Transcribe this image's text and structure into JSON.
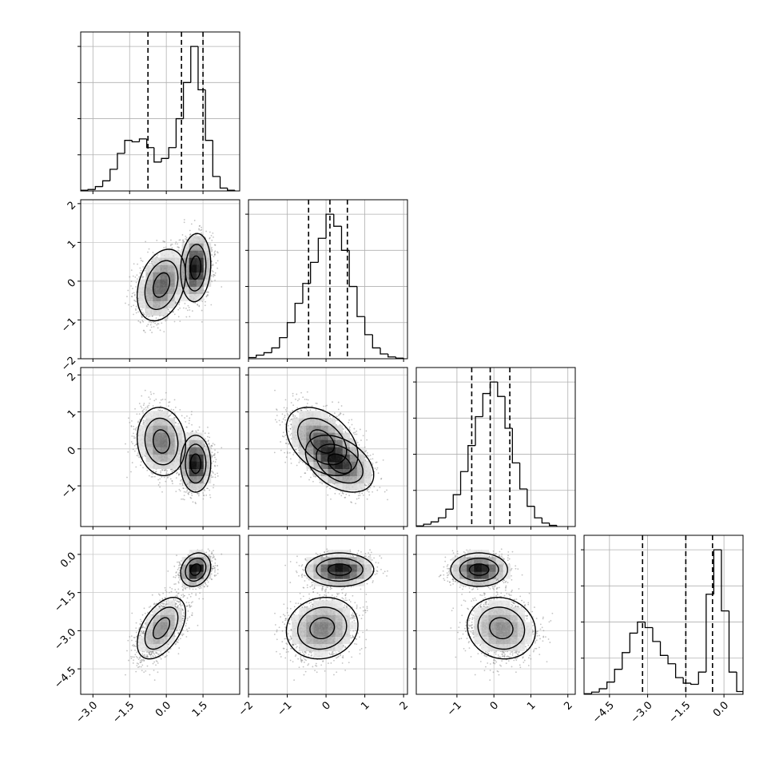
{
  "chart_data": {
    "type": "corner",
    "grid": true,
    "params": [
      {
        "id": "p0",
        "lim": [
          -3.5,
          3.0
        ],
        "ticks": [
          -3.0,
          -1.5,
          0.0,
          1.5
        ],
        "tick_labels": [
          "−3.0",
          "−1.5",
          "0.0",
          "1.5"
        ],
        "quantiles": [
          -0.75,
          0.62,
          1.5
        ]
      },
      {
        "id": "p1",
        "lim": [
          -2.0,
          2.1
        ],
        "ticks": [
          -2,
          -1,
          0,
          1,
          2
        ],
        "tick_labels": [
          "−2",
          "−1",
          "0",
          "1",
          "2"
        ],
        "quantiles": [
          -0.45,
          0.1,
          0.55
        ]
      },
      {
        "id": "p2",
        "lim": [
          -2.1,
          2.2
        ],
        "ticks": [
          -1,
          0,
          1,
          2
        ],
        "tick_labels": [
          "−1",
          "0",
          "1",
          "2"
        ],
        "quantiles": [
          -0.6,
          -0.1,
          0.43
        ]
      },
      {
        "id": "p3",
        "lim": [
          -5.5,
          0.75
        ],
        "ticks": [
          -4.5,
          -3.0,
          -1.5,
          0.0
        ],
        "tick_labels": [
          "−4.5",
          "−3.0",
          "−1.5",
          "0.0"
        ],
        "quantiles": [
          -3.2,
          -1.5,
          -0.45
        ]
      }
    ],
    "marginals": [
      {
        "param": "p0",
        "edges": [
          -3.5,
          -3.2,
          -2.9,
          -2.6,
          -2.3,
          -2.0,
          -1.7,
          -1.4,
          -1.1,
          -0.8,
          -0.5,
          -0.2,
          0.1,
          0.4,
          0.7,
          1.0,
          1.3,
          1.6,
          1.9,
          2.2,
          2.5,
          2.8
        ],
        "counts": [
          1,
          2,
          6,
          14,
          30,
          52,
          70,
          68,
          72,
          60,
          40,
          45,
          60,
          100,
          150,
          200,
          140,
          70,
          20,
          4,
          1
        ]
      },
      {
        "param": "p1",
        "edges": [
          -2.0,
          -1.8,
          -1.6,
          -1.4,
          -1.2,
          -1.0,
          -0.8,
          -0.6,
          -0.4,
          -0.2,
          0.0,
          0.2,
          0.4,
          0.6,
          0.8,
          1.0,
          1.2,
          1.4,
          1.6,
          1.8,
          2.0
        ],
        "counts": [
          2,
          6,
          10,
          18,
          35,
          60,
          92,
          125,
          160,
          200,
          240,
          220,
          180,
          120,
          70,
          40,
          18,
          8,
          3,
          1
        ]
      },
      {
        "param": "p2",
        "edges": [
          -2.1,
          -1.9,
          -1.7,
          -1.5,
          -1.3,
          -1.1,
          -0.9,
          -0.7,
          -0.5,
          -0.3,
          -0.1,
          0.1,
          0.3,
          0.5,
          0.7,
          0.9,
          1.1,
          1.3,
          1.5,
          1.7
        ],
        "counts": [
          1,
          4,
          8,
          15,
          30,
          55,
          95,
          140,
          190,
          230,
          250,
          225,
          170,
          110,
          65,
          35,
          15,
          6,
          2
        ]
      },
      {
        "param": "p3",
        "edges": [
          -5.5,
          -5.2,
          -4.9,
          -4.6,
          -4.3,
          -4.0,
          -3.7,
          -3.4,
          -3.1,
          -2.8,
          -2.5,
          -2.2,
          -1.9,
          -1.6,
          -1.3,
          -1.0,
          -0.7,
          -0.4,
          -0.1,
          0.2,
          0.5,
          0.75
        ],
        "counts": [
          1,
          4,
          10,
          22,
          45,
          75,
          110,
          130,
          120,
          95,
          70,
          55,
          30,
          20,
          18,
          40,
          180,
          260,
          150,
          40,
          5
        ]
      }
    ],
    "joint_components": [
      {
        "weight": 0.5,
        "mean": [
          -0.2,
          -0.1,
          0.2,
          -2.9
        ],
        "sd": [
          0.45,
          0.42,
          0.42,
          0.55
        ],
        "corr": [
          [
            1,
            0.3,
            -0.1,
            0.5
          ],
          [
            0.3,
            1,
            -0.4,
            0.1
          ],
          [
            -0.1,
            -0.4,
            1,
            -0.1
          ],
          [
            0.5,
            0.1,
            -0.1,
            1
          ]
        ]
      },
      {
        "weight": 0.5,
        "mean": [
          1.2,
          0.35,
          -0.4,
          -0.6
        ],
        "sd": [
          0.28,
          0.4,
          0.35,
          0.3
        ],
        "corr": [
          [
            1,
            0.1,
            0.0,
            0.2
          ],
          [
            0.1,
            1,
            -0.4,
            0.0
          ],
          [
            0.0,
            -0.4,
            1,
            0.0
          ],
          [
            0.2,
            0.0,
            0.0,
            1
          ]
        ]
      }
    ]
  }
}
